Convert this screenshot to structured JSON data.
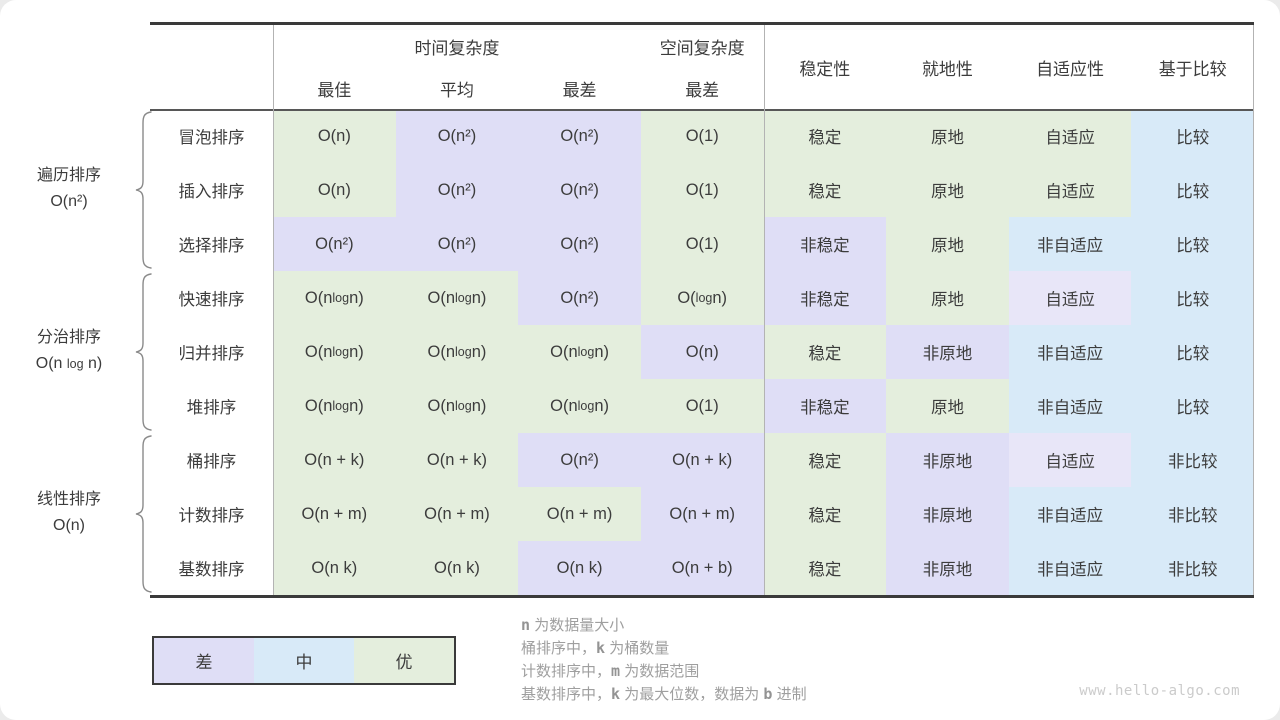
{
  "colors": {
    "good": "#e4eedd",
    "mid": "#d8eaf8",
    "bad": "#dfdef6",
    "bad2": "#e8e6f8"
  },
  "table": {
    "header": {
      "time_label": "时间复杂度",
      "space_label": "空间复杂度",
      "time_sub": [
        "最佳",
        "平均",
        "最差"
      ],
      "space_sub": "最差",
      "property_cols": [
        "稳定性",
        "就地性",
        "自适应性",
        "基于比较"
      ]
    },
    "groups": [
      {
        "name": "遍历排序",
        "complexity": "O(n²)",
        "start": 0,
        "end": 2
      },
      {
        "name": "分治排序",
        "complexity": "O(n log n)",
        "start": 3,
        "end": 5
      },
      {
        "name": "线性排序",
        "complexity": "O(n)",
        "start": 6,
        "end": 8
      }
    ],
    "rows": [
      {
        "name": "冒泡排序",
        "cells": [
          {
            "t": "O(n)",
            "c": "good"
          },
          {
            "t": "O(n²)",
            "c": "bad"
          },
          {
            "t": "O(n²)",
            "c": "bad"
          },
          {
            "t": "O(1)",
            "c": "good"
          },
          {
            "t": "稳定",
            "c": "good"
          },
          {
            "t": "原地",
            "c": "good"
          },
          {
            "t": "自适应",
            "c": "good"
          },
          {
            "t": "比较",
            "c": "mid"
          }
        ]
      },
      {
        "name": "插入排序",
        "cells": [
          {
            "t": "O(n)",
            "c": "good"
          },
          {
            "t": "O(n²)",
            "c": "bad"
          },
          {
            "t": "O(n²)",
            "c": "bad"
          },
          {
            "t": "O(1)",
            "c": "good"
          },
          {
            "t": "稳定",
            "c": "good"
          },
          {
            "t": "原地",
            "c": "good"
          },
          {
            "t": "自适应",
            "c": "good"
          },
          {
            "t": "比较",
            "c": "mid"
          }
        ]
      },
      {
        "name": "选择排序",
        "cells": [
          {
            "t": "O(n²)",
            "c": "bad"
          },
          {
            "t": "O(n²)",
            "c": "bad"
          },
          {
            "t": "O(n²)",
            "c": "bad"
          },
          {
            "t": "O(1)",
            "c": "good"
          },
          {
            "t": "非稳定",
            "c": "bad"
          },
          {
            "t": "原地",
            "c": "good"
          },
          {
            "t": "非自适应",
            "c": "mid"
          },
          {
            "t": "比较",
            "c": "mid"
          }
        ]
      },
      {
        "name": "快速排序",
        "cells": [
          {
            "t": "O(n log n)",
            "c": "good"
          },
          {
            "t": "O(n log n)",
            "c": "good"
          },
          {
            "t": "O(n²)",
            "c": "bad"
          },
          {
            "t": "O(log n)",
            "c": "good"
          },
          {
            "t": "非稳定",
            "c": "bad"
          },
          {
            "t": "原地",
            "c": "good"
          },
          {
            "t": "自适应",
            "c": "bad2"
          },
          {
            "t": "比较",
            "c": "mid"
          }
        ]
      },
      {
        "name": "归并排序",
        "cells": [
          {
            "t": "O(n log n)",
            "c": "good"
          },
          {
            "t": "O(n log n)",
            "c": "good"
          },
          {
            "t": "O(n log n)",
            "c": "good"
          },
          {
            "t": "O(n)",
            "c": "bad"
          },
          {
            "t": "稳定",
            "c": "good"
          },
          {
            "t": "非原地",
            "c": "bad"
          },
          {
            "t": "非自适应",
            "c": "mid"
          },
          {
            "t": "比较",
            "c": "mid"
          }
        ]
      },
      {
        "name": "堆排序",
        "cells": [
          {
            "t": "O(n log n)",
            "c": "good"
          },
          {
            "t": "O(n log n)",
            "c": "good"
          },
          {
            "t": "O(n log n)",
            "c": "good"
          },
          {
            "t": "O(1)",
            "c": "good"
          },
          {
            "t": "非稳定",
            "c": "bad"
          },
          {
            "t": "原地",
            "c": "good"
          },
          {
            "t": "非自适应",
            "c": "mid"
          },
          {
            "t": "比较",
            "c": "mid"
          }
        ]
      },
      {
        "name": "桶排序",
        "cells": [
          {
            "t": "O(n + k)",
            "c": "good"
          },
          {
            "t": "O(n + k)",
            "c": "good"
          },
          {
            "t": "O(n²)",
            "c": "bad"
          },
          {
            "t": "O(n + k)",
            "c": "bad"
          },
          {
            "t": "稳定",
            "c": "good"
          },
          {
            "t": "非原地",
            "c": "bad"
          },
          {
            "t": "自适应",
            "c": "bad2"
          },
          {
            "t": "非比较",
            "c": "mid"
          }
        ]
      },
      {
        "name": "计数排序",
        "cells": [
          {
            "t": "O(n + m)",
            "c": "good"
          },
          {
            "t": "O(n + m)",
            "c": "good"
          },
          {
            "t": "O(n + m)",
            "c": "good"
          },
          {
            "t": "O(n + m)",
            "c": "bad"
          },
          {
            "t": "稳定",
            "c": "good"
          },
          {
            "t": "非原地",
            "c": "bad"
          },
          {
            "t": "非自适应",
            "c": "mid"
          },
          {
            "t": "非比较",
            "c": "mid"
          }
        ]
      },
      {
        "name": "基数排序",
        "cells": [
          {
            "t": "O(n k)",
            "c": "good"
          },
          {
            "t": "O(n k)",
            "c": "good"
          },
          {
            "t": "O(n k)",
            "c": "bad"
          },
          {
            "t": "O(n + b)",
            "c": "bad"
          },
          {
            "t": "稳定",
            "c": "good"
          },
          {
            "t": "非原地",
            "c": "bad"
          },
          {
            "t": "非自适应",
            "c": "mid"
          },
          {
            "t": "非比较",
            "c": "mid"
          }
        ]
      }
    ]
  },
  "legend": [
    {
      "label": "差",
      "c": "bad"
    },
    {
      "label": "中",
      "c": "mid"
    },
    {
      "label": "优",
      "c": "good"
    }
  ],
  "notes": [
    [
      {
        "t": "n",
        "var": true
      },
      {
        "t": " 为数据量大小",
        "var": false
      }
    ],
    [
      {
        "t": "桶排序中，",
        "var": false
      },
      {
        "t": "k",
        "var": true
      },
      {
        "t": " 为桶数量",
        "var": false
      }
    ],
    [
      {
        "t": "计数排序中，",
        "var": false
      },
      {
        "t": "m",
        "var": true
      },
      {
        "t": " 为数据范围",
        "var": false
      }
    ],
    [
      {
        "t": "基数排序中，",
        "var": false
      },
      {
        "t": "k",
        "var": true
      },
      {
        "t": " 为最大位数，数据为 ",
        "var": false
      },
      {
        "t": "b",
        "var": true
      },
      {
        "t": " 进制",
        "var": false
      }
    ]
  ],
  "watermark": "www.hello-algo.com"
}
